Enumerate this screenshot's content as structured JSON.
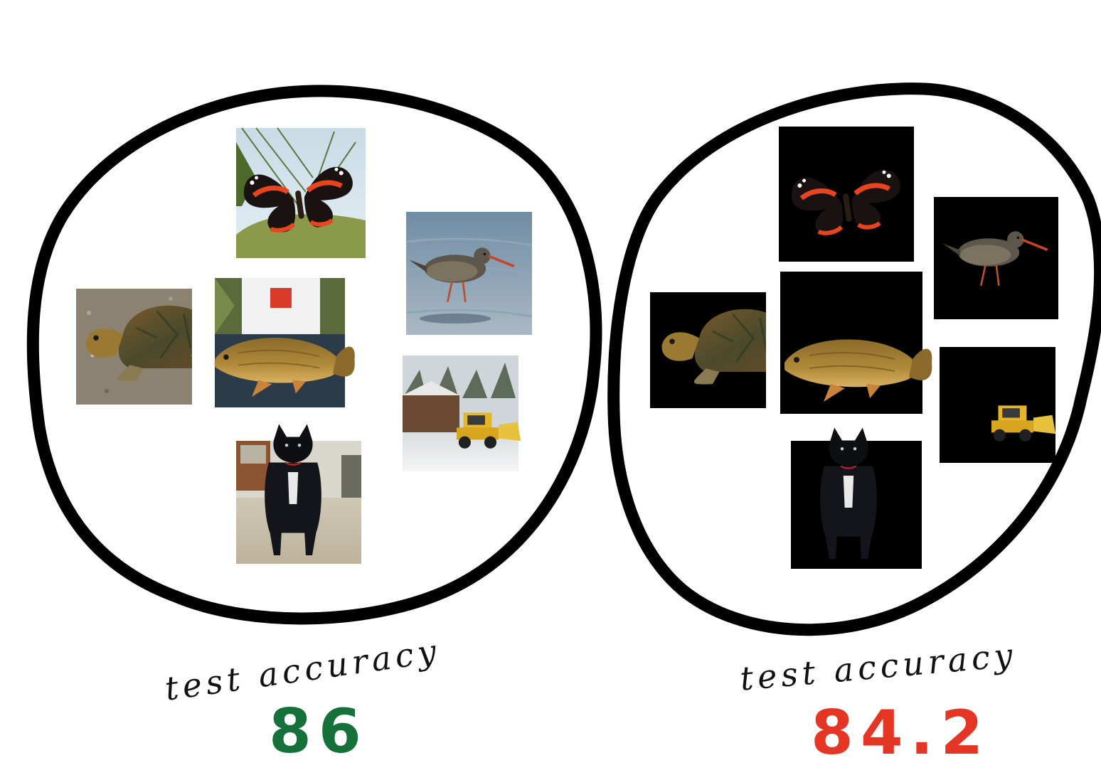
{
  "colors": {
    "outline": "#000000",
    "score_good": "#15703a",
    "score_bad": "#e53524",
    "masked_background": "#000000"
  },
  "left_panel": {
    "label": "test accuracy",
    "score": "86",
    "score_color": "#15703a",
    "images": [
      {
        "subject": "butterfly-icon",
        "background": "natural"
      },
      {
        "subject": "sandpiper-bird-icon",
        "background": "natural"
      },
      {
        "subject": "turtle-icon",
        "background": "natural"
      },
      {
        "subject": "carp-fish-icon",
        "background": "natural"
      },
      {
        "subject": "snowplow-icon",
        "background": "natural"
      },
      {
        "subject": "black-dog-icon",
        "background": "natural"
      }
    ]
  },
  "right_panel": {
    "label": "test accuracy",
    "score": "84.2",
    "score_color": "#e53524",
    "images": [
      {
        "subject": "butterfly-icon",
        "background": "masked-black"
      },
      {
        "subject": "sandpiper-bird-icon",
        "background": "masked-black"
      },
      {
        "subject": "turtle-icon",
        "background": "masked-black"
      },
      {
        "subject": "carp-fish-icon",
        "background": "masked-black"
      },
      {
        "subject": "snowplow-icon",
        "background": "masked-black"
      },
      {
        "subject": "black-dog-icon",
        "background": "masked-black"
      }
    ]
  }
}
